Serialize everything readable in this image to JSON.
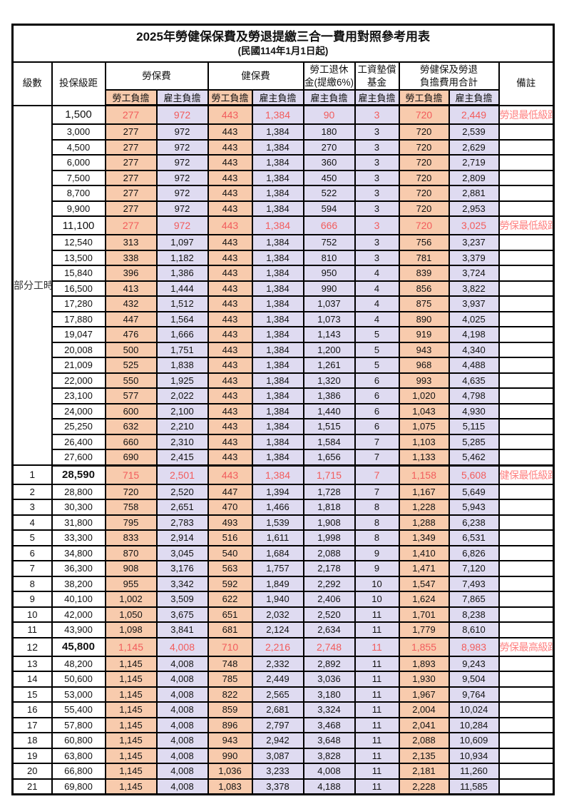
{
  "title": "2025年勞健保保費及勞退提繳三合一費用對照參考用表",
  "subtitle": "(民國114年1月1日起)",
  "colors": {
    "employee_share_bg": "#F8CBAD",
    "employer_share_bg": "#DFDBF1",
    "highlight_value_text": "#F25C5C",
    "remark_text": "#FF8080",
    "border": "#000000"
  },
  "header": {
    "level": "級數",
    "bracket": "投保級距",
    "labor_insurance": "勞保費",
    "health_insurance": "健保費",
    "pension_line1": "勞工退休",
    "pension_line2": "金(提繳6%)",
    "wage_fund_line1": "工資墊償",
    "wage_fund_line2": "基金",
    "total_line1": "勞健保及勞退",
    "total_line2": "負擔費用合計",
    "remark": "備註",
    "employee_share": "勞工負擔",
    "employer_share": "雇主負擔"
  },
  "part_time_label": "部分工時",
  "part_time_rowspan": 23,
  "rows": [
    {
      "level": "",
      "bracket": "1,500",
      "labor_emp": "277",
      "labor_er": "972",
      "health_emp": "443",
      "health_er": "1,384",
      "pension_er": "90",
      "wage_fund_er": "3",
      "total_emp": "720",
      "total_er": "2,449",
      "remark": "勞退最低級距",
      "highlight": true,
      "bold_bracket": false
    },
    {
      "level": "",
      "bracket": "3,000",
      "labor_emp": "277",
      "labor_er": "972",
      "health_emp": "443",
      "health_er": "1,384",
      "pension_er": "180",
      "wage_fund_er": "3",
      "total_emp": "720",
      "total_er": "2,539",
      "remark": "",
      "highlight": false,
      "bold_bracket": false
    },
    {
      "level": "",
      "bracket": "4,500",
      "labor_emp": "277",
      "labor_er": "972",
      "health_emp": "443",
      "health_er": "1,384",
      "pension_er": "270",
      "wage_fund_er": "3",
      "total_emp": "720",
      "total_er": "2,629",
      "remark": "",
      "highlight": false,
      "bold_bracket": false
    },
    {
      "level": "",
      "bracket": "6,000",
      "labor_emp": "277",
      "labor_er": "972",
      "health_emp": "443",
      "health_er": "1,384",
      "pension_er": "360",
      "wage_fund_er": "3",
      "total_emp": "720",
      "total_er": "2,719",
      "remark": "",
      "highlight": false,
      "bold_bracket": false
    },
    {
      "level": "",
      "bracket": "7,500",
      "labor_emp": "277",
      "labor_er": "972",
      "health_emp": "443",
      "health_er": "1,384",
      "pension_er": "450",
      "wage_fund_er": "3",
      "total_emp": "720",
      "total_er": "2,809",
      "remark": "",
      "highlight": false,
      "bold_bracket": false
    },
    {
      "level": "",
      "bracket": "8,700",
      "labor_emp": "277",
      "labor_er": "972",
      "health_emp": "443",
      "health_er": "1,384",
      "pension_er": "522",
      "wage_fund_er": "3",
      "total_emp": "720",
      "total_er": "2,881",
      "remark": "",
      "highlight": false,
      "bold_bracket": false
    },
    {
      "level": "",
      "bracket": "9,900",
      "labor_emp": "277",
      "labor_er": "972",
      "health_emp": "443",
      "health_er": "1,384",
      "pension_er": "594",
      "wage_fund_er": "3",
      "total_emp": "720",
      "total_er": "2,953",
      "remark": "",
      "highlight": false,
      "bold_bracket": false
    },
    {
      "level": "",
      "bracket": "11,100",
      "labor_emp": "277",
      "labor_er": "972",
      "health_emp": "443",
      "health_er": "1,384",
      "pension_er": "666",
      "wage_fund_er": "3",
      "total_emp": "720",
      "total_er": "3,025",
      "remark": "勞保最低級距",
      "highlight": true,
      "bold_bracket": false
    },
    {
      "level": "",
      "bracket": "12,540",
      "labor_emp": "313",
      "labor_er": "1,097",
      "health_emp": "443",
      "health_er": "1,384",
      "pension_er": "752",
      "wage_fund_er": "3",
      "total_emp": "756",
      "total_er": "3,237",
      "remark": "",
      "highlight": false,
      "bold_bracket": false
    },
    {
      "level": "",
      "bracket": "13,500",
      "labor_emp": "338",
      "labor_er": "1,182",
      "health_emp": "443",
      "health_er": "1,384",
      "pension_er": "810",
      "wage_fund_er": "3",
      "total_emp": "781",
      "total_er": "3,379",
      "remark": "",
      "highlight": false,
      "bold_bracket": false
    },
    {
      "level": "",
      "bracket": "15,840",
      "labor_emp": "396",
      "labor_er": "1,386",
      "health_emp": "443",
      "health_er": "1,384",
      "pension_er": "950",
      "wage_fund_er": "4",
      "total_emp": "839",
      "total_er": "3,724",
      "remark": "",
      "highlight": false,
      "bold_bracket": false
    },
    {
      "level": "",
      "bracket": "16,500",
      "labor_emp": "413",
      "labor_er": "1,444",
      "health_emp": "443",
      "health_er": "1,384",
      "pension_er": "990",
      "wage_fund_er": "4",
      "total_emp": "856",
      "total_er": "3,822",
      "remark": "",
      "highlight": false,
      "bold_bracket": false
    },
    {
      "level": "",
      "bracket": "17,280",
      "labor_emp": "432",
      "labor_er": "1,512",
      "health_emp": "443",
      "health_er": "1,384",
      "pension_er": "1,037",
      "wage_fund_er": "4",
      "total_emp": "875",
      "total_er": "3,937",
      "remark": "",
      "highlight": false,
      "bold_bracket": false
    },
    {
      "level": "",
      "bracket": "17,880",
      "labor_emp": "447",
      "labor_er": "1,564",
      "health_emp": "443",
      "health_er": "1,384",
      "pension_er": "1,073",
      "wage_fund_er": "4",
      "total_emp": "890",
      "total_er": "4,025",
      "remark": "",
      "highlight": false,
      "bold_bracket": false
    },
    {
      "level": "",
      "bracket": "19,047",
      "labor_emp": "476",
      "labor_er": "1,666",
      "health_emp": "443",
      "health_er": "1,384",
      "pension_er": "1,143",
      "wage_fund_er": "5",
      "total_emp": "919",
      "total_er": "4,198",
      "remark": "",
      "highlight": false,
      "bold_bracket": false
    },
    {
      "level": "",
      "bracket": "20,008",
      "labor_emp": "500",
      "labor_er": "1,751",
      "health_emp": "443",
      "health_er": "1,384",
      "pension_er": "1,200",
      "wage_fund_er": "5",
      "total_emp": "943",
      "total_er": "4,340",
      "remark": "",
      "highlight": false,
      "bold_bracket": false
    },
    {
      "level": "",
      "bracket": "21,009",
      "labor_emp": "525",
      "labor_er": "1,838",
      "health_emp": "443",
      "health_er": "1,384",
      "pension_er": "1,261",
      "wage_fund_er": "5",
      "total_emp": "968",
      "total_er": "4,488",
      "remark": "",
      "highlight": false,
      "bold_bracket": false
    },
    {
      "level": "",
      "bracket": "22,000",
      "labor_emp": "550",
      "labor_er": "1,925",
      "health_emp": "443",
      "health_er": "1,384",
      "pension_er": "1,320",
      "wage_fund_er": "6",
      "total_emp": "993",
      "total_er": "4,635",
      "remark": "",
      "highlight": false,
      "bold_bracket": false
    },
    {
      "level": "",
      "bracket": "23,100",
      "labor_emp": "577",
      "labor_er": "2,022",
      "health_emp": "443",
      "health_er": "1,384",
      "pension_er": "1,386",
      "wage_fund_er": "6",
      "total_emp": "1,020",
      "total_er": "4,798",
      "remark": "",
      "highlight": false,
      "bold_bracket": false
    },
    {
      "level": "",
      "bracket": "24,000",
      "labor_emp": "600",
      "labor_er": "2,100",
      "health_emp": "443",
      "health_er": "1,384",
      "pension_er": "1,440",
      "wage_fund_er": "6",
      "total_emp": "1,043",
      "total_er": "4,930",
      "remark": "",
      "highlight": false,
      "bold_bracket": false
    },
    {
      "level": "",
      "bracket": "25,250",
      "labor_emp": "632",
      "labor_er": "2,210",
      "health_emp": "443",
      "health_er": "1,384",
      "pension_er": "1,515",
      "wage_fund_er": "6",
      "total_emp": "1,075",
      "total_er": "5,115",
      "remark": "",
      "highlight": false,
      "bold_bracket": false
    },
    {
      "level": "",
      "bracket": "26,400",
      "labor_emp": "660",
      "labor_er": "2,310",
      "health_emp": "443",
      "health_er": "1,384",
      "pension_er": "1,584",
      "wage_fund_er": "7",
      "total_emp": "1,103",
      "total_er": "5,285",
      "remark": "",
      "highlight": false,
      "bold_bracket": false
    },
    {
      "level": "",
      "bracket": "27,600",
      "labor_emp": "690",
      "labor_er": "2,415",
      "health_emp": "443",
      "health_er": "1,384",
      "pension_er": "1,656",
      "wage_fund_er": "7",
      "total_emp": "1,133",
      "total_er": "5,462",
      "remark": "",
      "highlight": false,
      "bold_bracket": false,
      "section_end": true
    },
    {
      "level": "1",
      "bracket": "28,590",
      "labor_emp": "715",
      "labor_er": "2,501",
      "health_emp": "443",
      "health_er": "1,384",
      "pension_er": "1,715",
      "wage_fund_er": "7",
      "total_emp": "1,158",
      "total_er": "5,608",
      "remark": "健保最低級距",
      "highlight": true,
      "bold_bracket": true
    },
    {
      "level": "2",
      "bracket": "28,800",
      "labor_emp": "720",
      "labor_er": "2,520",
      "health_emp": "447",
      "health_er": "1,394",
      "pension_er": "1,728",
      "wage_fund_er": "7",
      "total_emp": "1,167",
      "total_er": "5,649",
      "remark": "",
      "highlight": false,
      "bold_bracket": false
    },
    {
      "level": "3",
      "bracket": "30,300",
      "labor_emp": "758",
      "labor_er": "2,651",
      "health_emp": "470",
      "health_er": "1,466",
      "pension_er": "1,818",
      "wage_fund_er": "8",
      "total_emp": "1,228",
      "total_er": "5,943",
      "remark": "",
      "highlight": false,
      "bold_bracket": false
    },
    {
      "level": "4",
      "bracket": "31,800",
      "labor_emp": "795",
      "labor_er": "2,783",
      "health_emp": "493",
      "health_er": "1,539",
      "pension_er": "1,908",
      "wage_fund_er": "8",
      "total_emp": "1,288",
      "total_er": "6,238",
      "remark": "",
      "highlight": false,
      "bold_bracket": false
    },
    {
      "level": "5",
      "bracket": "33,300",
      "labor_emp": "833",
      "labor_er": "2,914",
      "health_emp": "516",
      "health_er": "1,611",
      "pension_er": "1,998",
      "wage_fund_er": "8",
      "total_emp": "1,349",
      "total_er": "6,531",
      "remark": "",
      "highlight": false,
      "bold_bracket": false
    },
    {
      "level": "6",
      "bracket": "34,800",
      "labor_emp": "870",
      "labor_er": "3,045",
      "health_emp": "540",
      "health_er": "1,684",
      "pension_er": "2,088",
      "wage_fund_er": "9",
      "total_emp": "1,410",
      "total_er": "6,826",
      "remark": "",
      "highlight": false,
      "bold_bracket": false
    },
    {
      "level": "7",
      "bracket": "36,300",
      "labor_emp": "908",
      "labor_er": "3,176",
      "health_emp": "563",
      "health_er": "1,757",
      "pension_er": "2,178",
      "wage_fund_er": "9",
      "total_emp": "1,471",
      "total_er": "7,120",
      "remark": "",
      "highlight": false,
      "bold_bracket": false
    },
    {
      "level": "8",
      "bracket": "38,200",
      "labor_emp": "955",
      "labor_er": "3,342",
      "health_emp": "592",
      "health_er": "1,849",
      "pension_er": "2,292",
      "wage_fund_er": "10",
      "total_emp": "1,547",
      "total_er": "7,493",
      "remark": "",
      "highlight": false,
      "bold_bracket": false
    },
    {
      "level": "9",
      "bracket": "40,100",
      "labor_emp": "1,002",
      "labor_er": "3,509",
      "health_emp": "622",
      "health_er": "1,940",
      "pension_er": "2,406",
      "wage_fund_er": "10",
      "total_emp": "1,624",
      "total_er": "7,865",
      "remark": "",
      "highlight": false,
      "bold_bracket": false
    },
    {
      "level": "10",
      "bracket": "42,000",
      "labor_emp": "1,050",
      "labor_er": "3,675",
      "health_emp": "651",
      "health_er": "2,032",
      "pension_er": "2,520",
      "wage_fund_er": "11",
      "total_emp": "1,701",
      "total_er": "8,238",
      "remark": "",
      "highlight": false,
      "bold_bracket": false
    },
    {
      "level": "11",
      "bracket": "43,900",
      "labor_emp": "1,098",
      "labor_er": "3,841",
      "health_emp": "681",
      "health_er": "2,124",
      "pension_er": "2,634",
      "wage_fund_er": "11",
      "total_emp": "1,779",
      "total_er": "8,610",
      "remark": "",
      "highlight": false,
      "bold_bracket": false
    },
    {
      "level": "12",
      "bracket": "45,800",
      "labor_emp": "1,145",
      "labor_er": "4,008",
      "health_emp": "710",
      "health_er": "2,216",
      "pension_er": "2,748",
      "wage_fund_er": "11",
      "total_emp": "1,855",
      "total_er": "8,983",
      "remark": "勞保最高級距",
      "highlight": true,
      "bold_bracket": true
    },
    {
      "level": "13",
      "bracket": "48,200",
      "labor_emp": "1,145",
      "labor_er": "4,008",
      "health_emp": "748",
      "health_er": "2,332",
      "pension_er": "2,892",
      "wage_fund_er": "11",
      "total_emp": "1,893",
      "total_er": "9,243",
      "remark": "",
      "highlight": false,
      "bold_bracket": false
    },
    {
      "level": "14",
      "bracket": "50,600",
      "labor_emp": "1,145",
      "labor_er": "4,008",
      "health_emp": "785",
      "health_er": "2,449",
      "pension_er": "3,036",
      "wage_fund_er": "11",
      "total_emp": "1,930",
      "total_er": "9,504",
      "remark": "",
      "highlight": false,
      "bold_bracket": false
    },
    {
      "level": "15",
      "bracket": "53,000",
      "labor_emp": "1,145",
      "labor_er": "4,008",
      "health_emp": "822",
      "health_er": "2,565",
      "pension_er": "3,180",
      "wage_fund_er": "11",
      "total_emp": "1,967",
      "total_er": "9,764",
      "remark": "",
      "highlight": false,
      "bold_bracket": false
    },
    {
      "level": "16",
      "bracket": "55,400",
      "labor_emp": "1,145",
      "labor_er": "4,008",
      "health_emp": "859",
      "health_er": "2,681",
      "pension_er": "3,324",
      "wage_fund_er": "11",
      "total_emp": "2,004",
      "total_er": "10,024",
      "remark": "",
      "highlight": false,
      "bold_bracket": false
    },
    {
      "level": "17",
      "bracket": "57,800",
      "labor_emp": "1,145",
      "labor_er": "4,008",
      "health_emp": "896",
      "health_er": "2,797",
      "pension_er": "3,468",
      "wage_fund_er": "11",
      "total_emp": "2,041",
      "total_er": "10,284",
      "remark": "",
      "highlight": false,
      "bold_bracket": false
    },
    {
      "level": "18",
      "bracket": "60,800",
      "labor_emp": "1,145",
      "labor_er": "4,008",
      "health_emp": "943",
      "health_er": "2,942",
      "pension_er": "3,648",
      "wage_fund_er": "11",
      "total_emp": "2,088",
      "total_er": "10,609",
      "remark": "",
      "highlight": false,
      "bold_bracket": false
    },
    {
      "level": "19",
      "bracket": "63,800",
      "labor_emp": "1,145",
      "labor_er": "4,008",
      "health_emp": "990",
      "health_er": "3,087",
      "pension_er": "3,828",
      "wage_fund_er": "11",
      "total_emp": "2,135",
      "total_er": "10,934",
      "remark": "",
      "highlight": false,
      "bold_bracket": false
    },
    {
      "level": "20",
      "bracket": "66,800",
      "labor_emp": "1,145",
      "labor_er": "4,008",
      "health_emp": "1,036",
      "health_er": "3,233",
      "pension_er": "4,008",
      "wage_fund_er": "11",
      "total_emp": "2,181",
      "total_er": "11,260",
      "remark": "",
      "highlight": false,
      "bold_bracket": false
    },
    {
      "level": "21",
      "bracket": "69,800",
      "labor_emp": "1,145",
      "labor_er": "4,008",
      "health_emp": "1,083",
      "health_er": "3,378",
      "pension_er": "4,188",
      "wage_fund_er": "11",
      "total_emp": "2,228",
      "total_er": "11,585",
      "remark": "",
      "highlight": false,
      "bold_bracket": false
    }
  ]
}
